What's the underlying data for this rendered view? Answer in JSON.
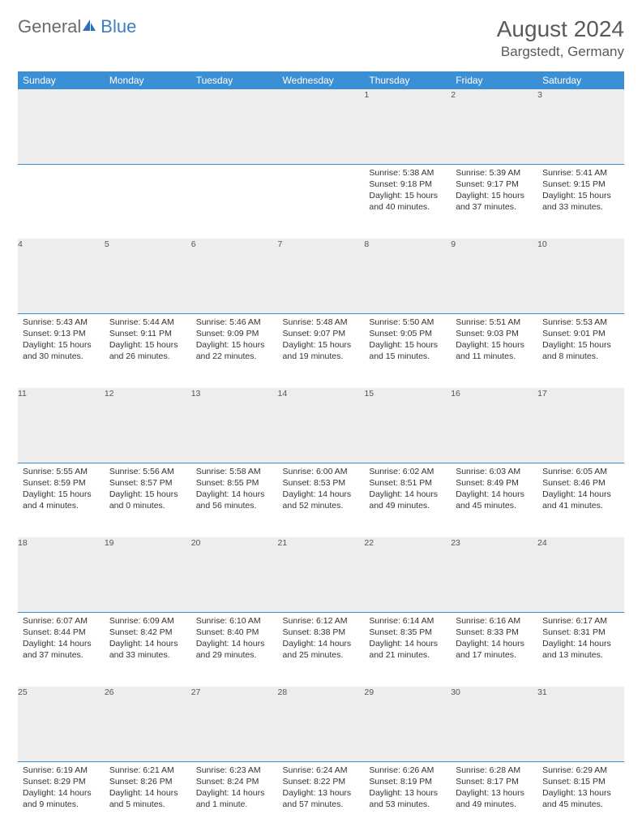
{
  "logo": {
    "general": "General",
    "blue": "Blue"
  },
  "title": "August 2024",
  "location": "Bargstedt, Germany",
  "colors": {
    "header_bg": "#3b8fd4",
    "header_text": "#ffffff",
    "daynum_bg": "#ededed",
    "daynum_border": "#3b8fd4",
    "text": "#333333",
    "logo_gray": "#6b6b6b",
    "logo_blue": "#3b7fc4"
  },
  "weekdays": [
    "Sunday",
    "Monday",
    "Tuesday",
    "Wednesday",
    "Thursday",
    "Friday",
    "Saturday"
  ],
  "weeks": [
    [
      null,
      null,
      null,
      null,
      {
        "n": "1",
        "sr": "Sunrise: 5:38 AM",
        "ss": "Sunset: 9:18 PM",
        "d1": "Daylight: 15 hours",
        "d2": "and 40 minutes."
      },
      {
        "n": "2",
        "sr": "Sunrise: 5:39 AM",
        "ss": "Sunset: 9:17 PM",
        "d1": "Daylight: 15 hours",
        "d2": "and 37 minutes."
      },
      {
        "n": "3",
        "sr": "Sunrise: 5:41 AM",
        "ss": "Sunset: 9:15 PM",
        "d1": "Daylight: 15 hours",
        "d2": "and 33 minutes."
      }
    ],
    [
      {
        "n": "4",
        "sr": "Sunrise: 5:43 AM",
        "ss": "Sunset: 9:13 PM",
        "d1": "Daylight: 15 hours",
        "d2": "and 30 minutes."
      },
      {
        "n": "5",
        "sr": "Sunrise: 5:44 AM",
        "ss": "Sunset: 9:11 PM",
        "d1": "Daylight: 15 hours",
        "d2": "and 26 minutes."
      },
      {
        "n": "6",
        "sr": "Sunrise: 5:46 AM",
        "ss": "Sunset: 9:09 PM",
        "d1": "Daylight: 15 hours",
        "d2": "and 22 minutes."
      },
      {
        "n": "7",
        "sr": "Sunrise: 5:48 AM",
        "ss": "Sunset: 9:07 PM",
        "d1": "Daylight: 15 hours",
        "d2": "and 19 minutes."
      },
      {
        "n": "8",
        "sr": "Sunrise: 5:50 AM",
        "ss": "Sunset: 9:05 PM",
        "d1": "Daylight: 15 hours",
        "d2": "and 15 minutes."
      },
      {
        "n": "9",
        "sr": "Sunrise: 5:51 AM",
        "ss": "Sunset: 9:03 PM",
        "d1": "Daylight: 15 hours",
        "d2": "and 11 minutes."
      },
      {
        "n": "10",
        "sr": "Sunrise: 5:53 AM",
        "ss": "Sunset: 9:01 PM",
        "d1": "Daylight: 15 hours",
        "d2": "and 8 minutes."
      }
    ],
    [
      {
        "n": "11",
        "sr": "Sunrise: 5:55 AM",
        "ss": "Sunset: 8:59 PM",
        "d1": "Daylight: 15 hours",
        "d2": "and 4 minutes."
      },
      {
        "n": "12",
        "sr": "Sunrise: 5:56 AM",
        "ss": "Sunset: 8:57 PM",
        "d1": "Daylight: 15 hours",
        "d2": "and 0 minutes."
      },
      {
        "n": "13",
        "sr": "Sunrise: 5:58 AM",
        "ss": "Sunset: 8:55 PM",
        "d1": "Daylight: 14 hours",
        "d2": "and 56 minutes."
      },
      {
        "n": "14",
        "sr": "Sunrise: 6:00 AM",
        "ss": "Sunset: 8:53 PM",
        "d1": "Daylight: 14 hours",
        "d2": "and 52 minutes."
      },
      {
        "n": "15",
        "sr": "Sunrise: 6:02 AM",
        "ss": "Sunset: 8:51 PM",
        "d1": "Daylight: 14 hours",
        "d2": "and 49 minutes."
      },
      {
        "n": "16",
        "sr": "Sunrise: 6:03 AM",
        "ss": "Sunset: 8:49 PM",
        "d1": "Daylight: 14 hours",
        "d2": "and 45 minutes."
      },
      {
        "n": "17",
        "sr": "Sunrise: 6:05 AM",
        "ss": "Sunset: 8:46 PM",
        "d1": "Daylight: 14 hours",
        "d2": "and 41 minutes."
      }
    ],
    [
      {
        "n": "18",
        "sr": "Sunrise: 6:07 AM",
        "ss": "Sunset: 8:44 PM",
        "d1": "Daylight: 14 hours",
        "d2": "and 37 minutes."
      },
      {
        "n": "19",
        "sr": "Sunrise: 6:09 AM",
        "ss": "Sunset: 8:42 PM",
        "d1": "Daylight: 14 hours",
        "d2": "and 33 minutes."
      },
      {
        "n": "20",
        "sr": "Sunrise: 6:10 AM",
        "ss": "Sunset: 8:40 PM",
        "d1": "Daylight: 14 hours",
        "d2": "and 29 minutes."
      },
      {
        "n": "21",
        "sr": "Sunrise: 6:12 AM",
        "ss": "Sunset: 8:38 PM",
        "d1": "Daylight: 14 hours",
        "d2": "and 25 minutes."
      },
      {
        "n": "22",
        "sr": "Sunrise: 6:14 AM",
        "ss": "Sunset: 8:35 PM",
        "d1": "Daylight: 14 hours",
        "d2": "and 21 minutes."
      },
      {
        "n": "23",
        "sr": "Sunrise: 6:16 AM",
        "ss": "Sunset: 8:33 PM",
        "d1": "Daylight: 14 hours",
        "d2": "and 17 minutes."
      },
      {
        "n": "24",
        "sr": "Sunrise: 6:17 AM",
        "ss": "Sunset: 8:31 PM",
        "d1": "Daylight: 14 hours",
        "d2": "and 13 minutes."
      }
    ],
    [
      {
        "n": "25",
        "sr": "Sunrise: 6:19 AM",
        "ss": "Sunset: 8:29 PM",
        "d1": "Daylight: 14 hours",
        "d2": "and 9 minutes."
      },
      {
        "n": "26",
        "sr": "Sunrise: 6:21 AM",
        "ss": "Sunset: 8:26 PM",
        "d1": "Daylight: 14 hours",
        "d2": "and 5 minutes."
      },
      {
        "n": "27",
        "sr": "Sunrise: 6:23 AM",
        "ss": "Sunset: 8:24 PM",
        "d1": "Daylight: 14 hours",
        "d2": "and 1 minute."
      },
      {
        "n": "28",
        "sr": "Sunrise: 6:24 AM",
        "ss": "Sunset: 8:22 PM",
        "d1": "Daylight: 13 hours",
        "d2": "and 57 minutes."
      },
      {
        "n": "29",
        "sr": "Sunrise: 6:26 AM",
        "ss": "Sunset: 8:19 PM",
        "d1": "Daylight: 13 hours",
        "d2": "and 53 minutes."
      },
      {
        "n": "30",
        "sr": "Sunrise: 6:28 AM",
        "ss": "Sunset: 8:17 PM",
        "d1": "Daylight: 13 hours",
        "d2": "and 49 minutes."
      },
      {
        "n": "31",
        "sr": "Sunrise: 6:29 AM",
        "ss": "Sunset: 8:15 PM",
        "d1": "Daylight: 13 hours",
        "d2": "and 45 minutes."
      }
    ]
  ]
}
